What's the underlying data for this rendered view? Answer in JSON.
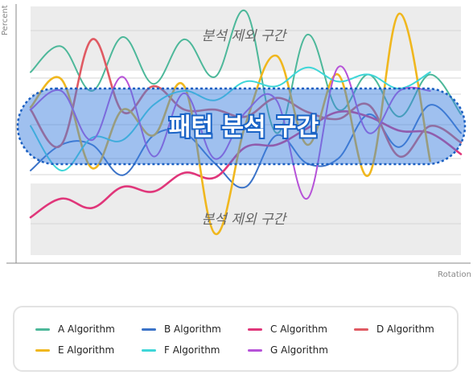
{
  "chart_data": {
    "type": "line",
    "xlabel": "Rotation",
    "ylabel": "Percent",
    "ylim": [
      0,
      100
    ],
    "grid": true,
    "legend_position": "bottom",
    "bands": {
      "exclude_top_label": "분석 제외 구간",
      "exclude_bottom_label": "분석 제외 구간",
      "focus_label": "패턴 분석 구간",
      "focus_range": [
        38,
        70
      ]
    },
    "series": [
      {
        "name": "A Algorithm",
        "color": "#4db89a",
        "points": [
          [
            12,
            74
          ],
          [
            14,
            85
          ],
          [
            16,
            66
          ],
          [
            18,
            89
          ],
          [
            20,
            69
          ],
          [
            22,
            88
          ],
          [
            24,
            72
          ],
          [
            26,
            100
          ],
          [
            28,
            48
          ],
          [
            30,
            90
          ],
          [
            32,
            58
          ],
          [
            34,
            73
          ],
          [
            36,
            55
          ],
          [
            38,
            73
          ],
          [
            40,
            56
          ]
        ]
      },
      {
        "name": "B Algorithm",
        "color": "#3b73c8",
        "points": [
          [
            12,
            32
          ],
          [
            14,
            43
          ],
          [
            16,
            43
          ],
          [
            18,
            30
          ],
          [
            20,
            47
          ],
          [
            22,
            48
          ],
          [
            24,
            35
          ],
          [
            26,
            25
          ],
          [
            28,
            47
          ],
          [
            30,
            35
          ],
          [
            32,
            37
          ],
          [
            34,
            56
          ],
          [
            36,
            42
          ],
          [
            38,
            60
          ],
          [
            40,
            48
          ]
        ]
      },
      {
        "name": "C Algorithm",
        "color": "#e0367a",
        "points": [
          [
            12,
            12
          ],
          [
            14,
            20
          ],
          [
            16,
            16
          ],
          [
            18,
            25
          ],
          [
            20,
            23
          ],
          [
            22,
            31
          ],
          [
            24,
            29
          ],
          [
            26,
            42
          ],
          [
            28,
            43
          ],
          [
            30,
            50
          ],
          [
            32,
            57
          ],
          [
            34,
            55
          ],
          [
            36,
            49
          ],
          [
            38,
            48
          ],
          [
            40,
            39
          ]
        ]
      },
      {
        "name": "D Algorithm",
        "color": "#e05a63",
        "points": [
          [
            12,
            58
          ],
          [
            14,
            43
          ],
          [
            16,
            88
          ],
          [
            18,
            57
          ],
          [
            20,
            68
          ],
          [
            22,
            58
          ],
          [
            24,
            58
          ],
          [
            26,
            55
          ],
          [
            28,
            63
          ],
          [
            30,
            57
          ],
          [
            32,
            54
          ],
          [
            34,
            60
          ],
          [
            36,
            38
          ],
          [
            38,
            51
          ],
          [
            40,
            44
          ]
        ]
      },
      {
        "name": "E Algorithm",
        "color": "#f0b71e",
        "points": [
          [
            12,
            59
          ],
          [
            14,
            71
          ],
          [
            16,
            33
          ],
          [
            18,
            58
          ],
          [
            20,
            47
          ],
          [
            22,
            68
          ],
          [
            24,
            5
          ],
          [
            26,
            52
          ],
          [
            28,
            81
          ],
          [
            30,
            43
          ],
          [
            32,
            73
          ],
          [
            34,
            30
          ],
          [
            36,
            99
          ],
          [
            38,
            36
          ]
        ]
      },
      {
        "name": "F Algorithm",
        "color": "#3fd6d8",
        "points": [
          [
            12,
            51
          ],
          [
            14,
            32
          ],
          [
            16,
            46
          ],
          [
            18,
            45
          ],
          [
            20,
            60
          ],
          [
            22,
            66
          ],
          [
            24,
            62
          ],
          [
            26,
            70
          ],
          [
            28,
            68
          ],
          [
            30,
            76
          ],
          [
            32,
            70
          ],
          [
            34,
            73
          ],
          [
            36,
            67
          ],
          [
            38,
            74
          ]
        ]
      },
      {
        "name": "G Algorithm",
        "color": "#b652d8",
        "points": [
          [
            12,
            58
          ],
          [
            14,
            66
          ],
          [
            16,
            45
          ],
          [
            18,
            72
          ],
          [
            20,
            38
          ],
          [
            22,
            65
          ],
          [
            24,
            37
          ],
          [
            26,
            57
          ],
          [
            28,
            62
          ],
          [
            30,
            20
          ],
          [
            32,
            76
          ],
          [
            34,
            48
          ],
          [
            36,
            66
          ],
          [
            38,
            66
          ]
        ]
      }
    ]
  },
  "legend": {
    "items": [
      {
        "label": "A Algorithm",
        "color": "#4db89a"
      },
      {
        "label": "B Algorithm",
        "color": "#3b73c8"
      },
      {
        "label": "C Algorithm",
        "color": "#e0367a"
      },
      {
        "label": "D Algorithm",
        "color": "#e05a63"
      },
      {
        "label": "E Algorithm",
        "color": "#f0b71e"
      },
      {
        "label": "F Algorithm",
        "color": "#3fd6d8"
      },
      {
        "label": "G Algorithm",
        "color": "#b652d8"
      }
    ]
  }
}
